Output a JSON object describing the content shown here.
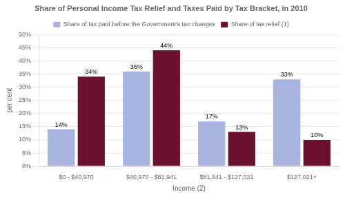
{
  "chart_data": {
    "type": "bar",
    "title": "Share of Personal Income Tax Relief and Taxes Paid by Tax Bracket, in 2010",
    "xlabel": "Income (2)",
    "ylabel": "per cent",
    "categories": [
      "$0 - $40,970",
      "$40,970 - $81,941",
      "$81,941 - $127,021",
      "$127,021+"
    ],
    "series": [
      {
        "name": "Share of tax paid before the Government's\ntax changes",
        "color": "#a8b4e0",
        "values": [
          14,
          36,
          17,
          33
        ],
        "value_labels": [
          "14%",
          "36%",
          "17%",
          "33%"
        ]
      },
      {
        "name": "Share of tax relief (1)",
        "color": "#6b1030",
        "values": [
          34,
          44,
          13,
          10
        ],
        "value_labels": [
          "34%",
          "44%",
          "13%",
          "10%"
        ]
      }
    ],
    "ylim": [
      0,
      50
    ],
    "yticks": [
      {
        "value": 0,
        "label": "0%"
      },
      {
        "value": 5,
        "label": "5%"
      },
      {
        "value": 10,
        "label": "10%"
      },
      {
        "value": 15,
        "label": "15%"
      },
      {
        "value": 20,
        "label": "20%"
      },
      {
        "value": 25,
        "label": "25%"
      },
      {
        "value": 30,
        "label": "30%"
      },
      {
        "value": 35,
        "label": "35%"
      },
      {
        "value": 40,
        "label": "40%"
      },
      {
        "value": 45,
        "label": "45%"
      },
      {
        "value": 50,
        "label": "50%"
      }
    ],
    "grid": true,
    "legend": "top",
    "data_labels": true
  }
}
